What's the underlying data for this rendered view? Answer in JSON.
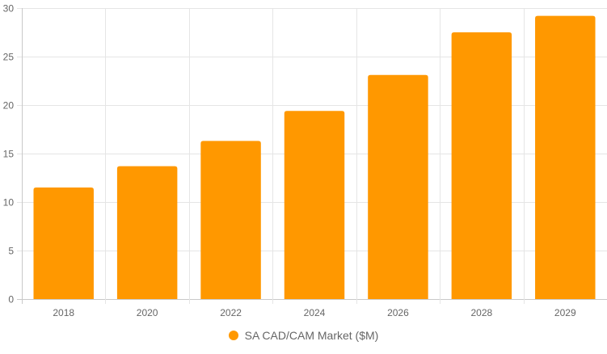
{
  "colors": {
    "bar": "#ff9800",
    "grid": "#e5e5e5",
    "axis": "#c9c9c9",
    "tick_text": "#666666"
  },
  "legend": {
    "label": "SA CAD/CAM Market ($M)",
    "marker": "circle"
  },
  "chart_data": {
    "type": "bar",
    "title": "",
    "xlabel": "",
    "ylabel": "",
    "categories": [
      "2018",
      "2020",
      "2022",
      "2024",
      "2026",
      "2028",
      "2029"
    ],
    "series": [
      {
        "name": "SA CAD/CAM Market ($M)",
        "values": [
          11.5,
          13.7,
          16.3,
          19.4,
          23.1,
          27.5,
          29.2
        ]
      }
    ],
    "ylim": [
      0,
      30
    ],
    "yticks": [
      0,
      5,
      10,
      15,
      20,
      25,
      30
    ],
    "grid": true,
    "legend_position": "bottom"
  }
}
